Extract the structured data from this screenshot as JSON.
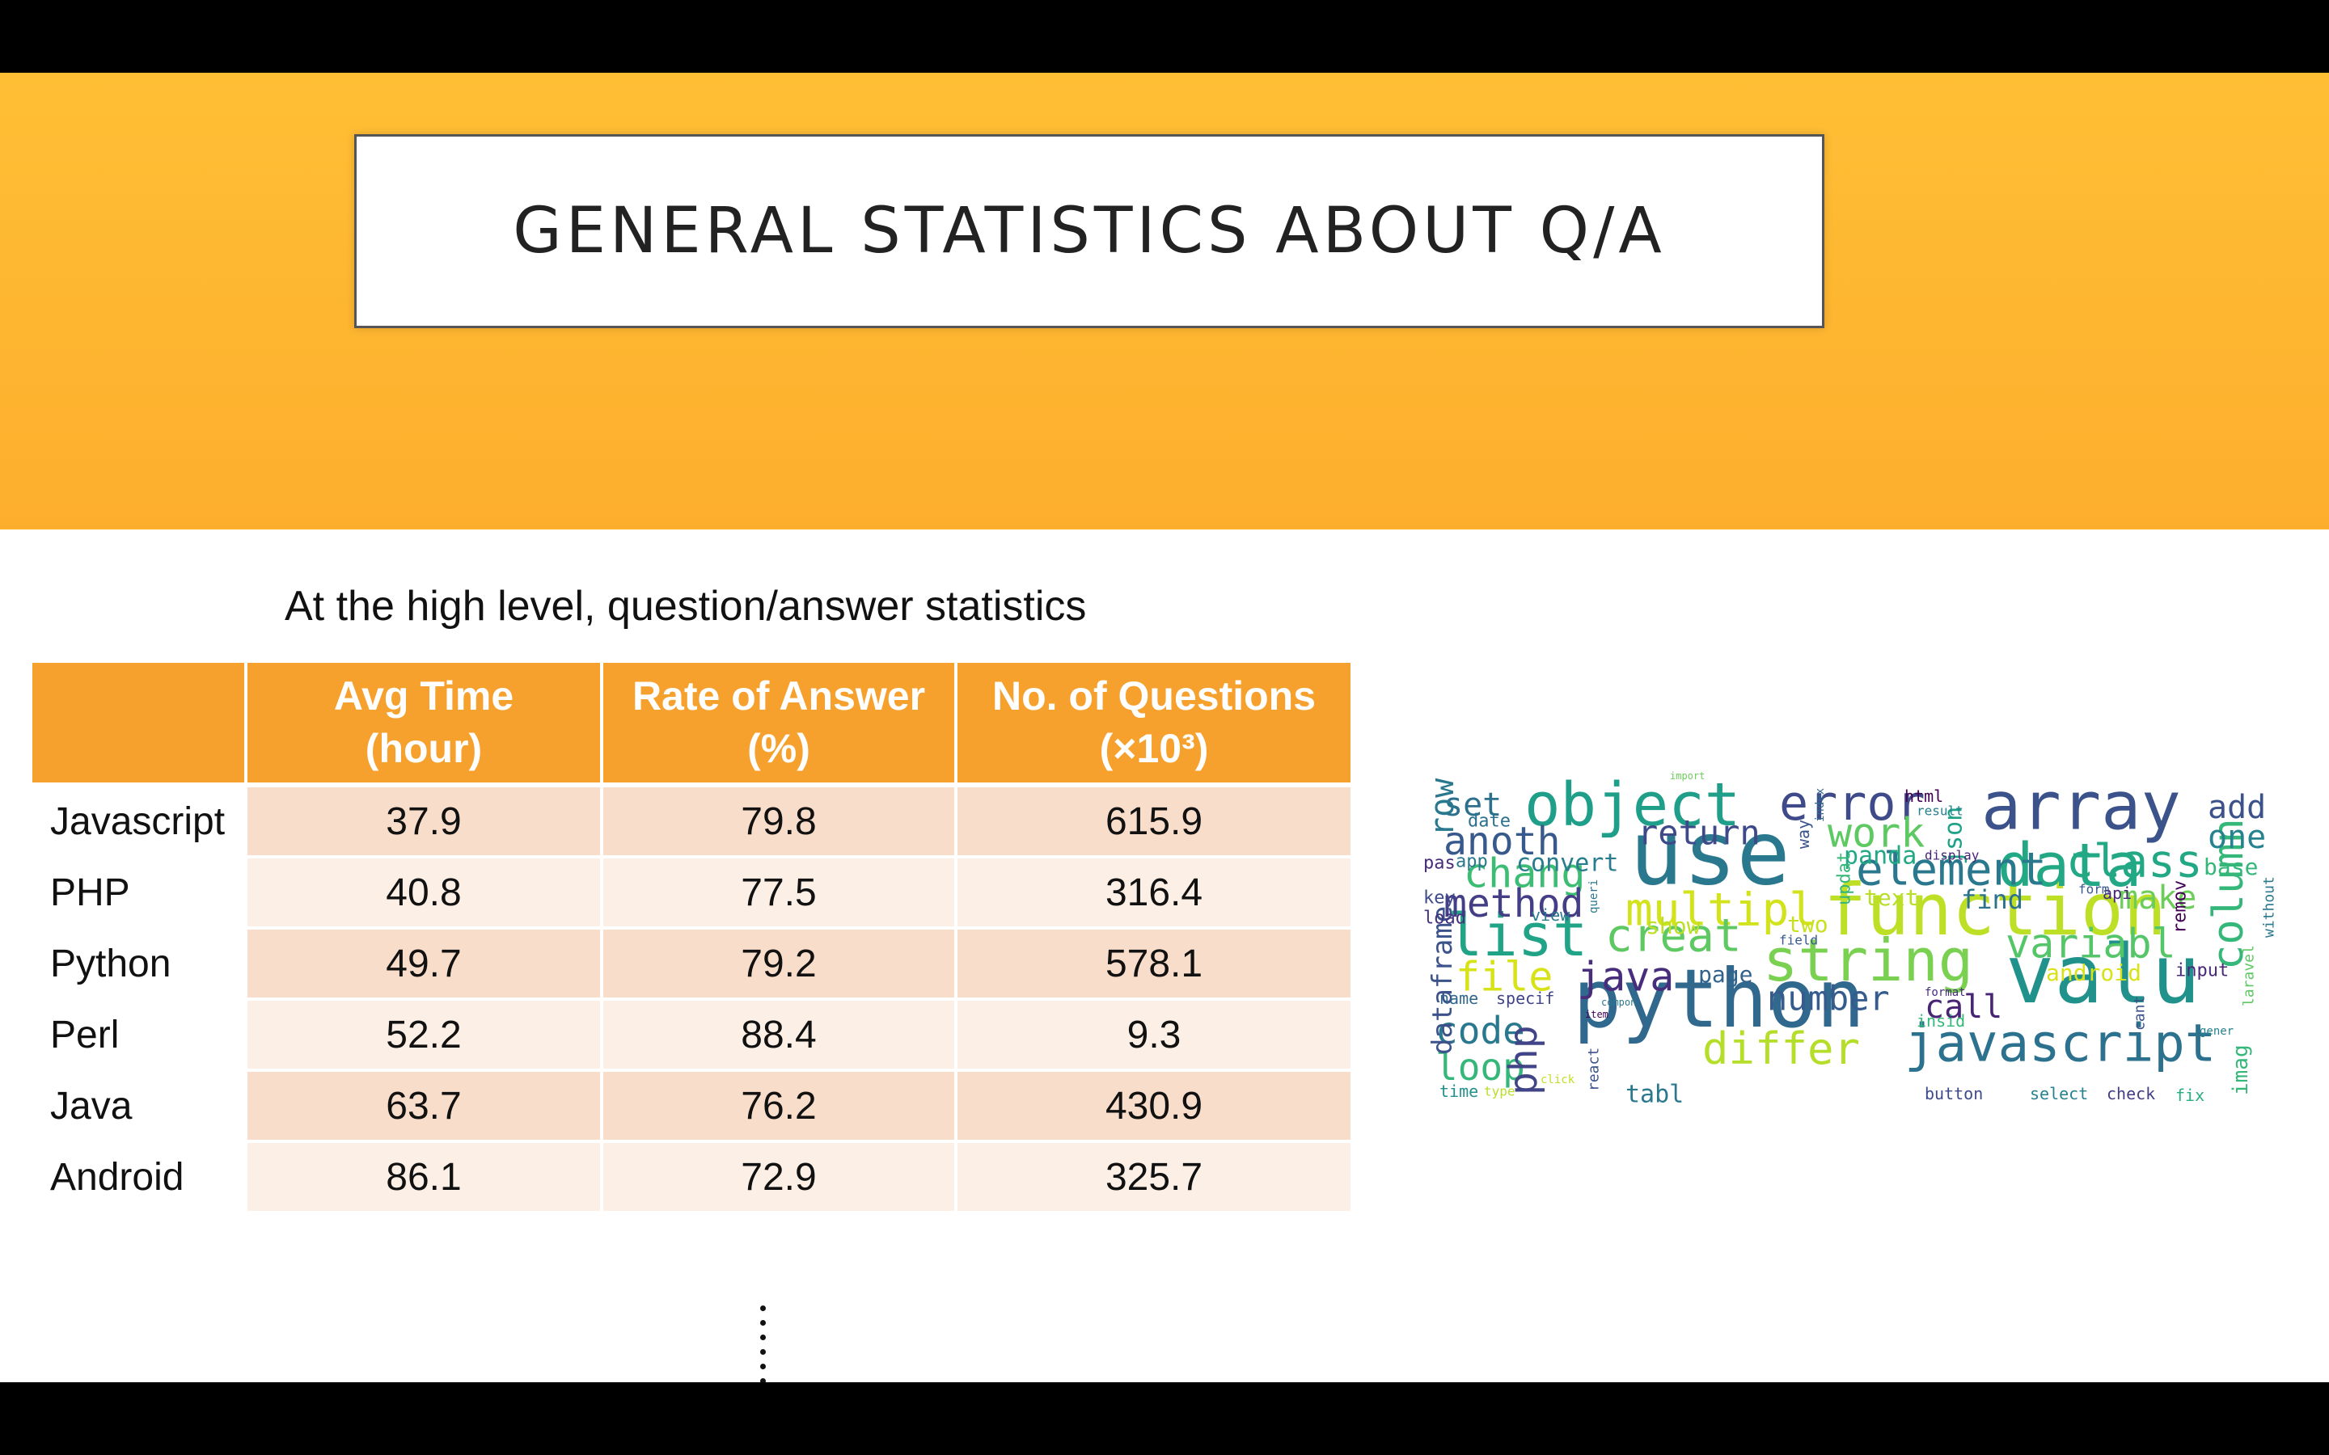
{
  "title": "GENERAL STATISTICS ABOUT Q/A",
  "subtitle": "At the high level, question/answer statistics",
  "table": {
    "headers": [
      {
        "line1": "",
        "line2": ""
      },
      {
        "line1": "Avg Time",
        "line2": "(hour)"
      },
      {
        "line1": "Rate of Answer",
        "line2": "(%)"
      },
      {
        "line1": "No. of Questions",
        "line2": "(×10³)"
      }
    ],
    "rows": [
      {
        "name": "Javascript",
        "avg_time": "37.9",
        "rate": "79.8",
        "questions": "615.9"
      },
      {
        "name": "PHP",
        "avg_time": "40.8",
        "rate": "77.5",
        "questions": "316.4"
      },
      {
        "name": "Python",
        "avg_time": "49.7",
        "rate": "79.2",
        "questions": "578.1"
      },
      {
        "name": "Perl",
        "avg_time": "52.2",
        "rate": "88.4",
        "questions": "9.3"
      },
      {
        "name": "Java",
        "avg_time": "63.7",
        "rate": "76.2",
        "questions": "430.9"
      },
      {
        "name": "Android",
        "avg_time": "86.1",
        "rate": "72.9",
        "questions": "325.7"
      }
    ]
  },
  "colors": {
    "banner": "#fdb02e",
    "header": "#f6a12e",
    "row_dark": "#f9ddcb",
    "row_light": "#fcefe6"
  },
  "word_cloud": {
    "words": [
      {
        "text": "use",
        "color": "#2a788e",
        "size": 110
      },
      {
        "text": "python",
        "color": "#31688e",
        "size": 100
      },
      {
        "text": "valu",
        "color": "#21918c",
        "size": 100
      },
      {
        "text": "function",
        "color": "#bddf26",
        "size": 88
      },
      {
        "text": "array",
        "color": "#3b528b",
        "size": 82
      },
      {
        "text": "object",
        "color": "#1f9e89",
        "size": 74
      },
      {
        "text": "data",
        "color": "#22a884",
        "size": 74
      },
      {
        "text": "string",
        "color": "#7ad151",
        "size": 72
      },
      {
        "text": "list",
        "color": "#20a386",
        "size": 72
      },
      {
        "text": "javascript",
        "color": "#2c728e",
        "size": 64
      },
      {
        "text": "error",
        "color": "#3e4a89",
        "size": 60
      },
      {
        "text": "element",
        "color": "#2a788e",
        "size": 56
      },
      {
        "text": "class",
        "color": "#22a884",
        "size": 56
      },
      {
        "text": "multipl",
        "color": "#d2e21b",
        "size": 56
      },
      {
        "text": "creat",
        "color": "#5ec962",
        "size": 56
      },
      {
        "text": "differ",
        "color": "#b5de2b",
        "size": 54
      },
      {
        "text": "column",
        "color": "#35b779",
        "size": 52
      },
      {
        "text": "variabl",
        "color": "#54c568",
        "size": 50
      },
      {
        "text": "work",
        "color": "#5ec962",
        "size": 50
      },
      {
        "text": "chang",
        "color": "#3dbc74",
        "size": 50
      },
      {
        "text": "method",
        "color": "#433e85",
        "size": 48
      },
      {
        "text": "file",
        "color": "#d8e219",
        "size": 50
      },
      {
        "text": "java",
        "color": "#472d7b",
        "size": 50
      },
      {
        "text": "anoth",
        "color": "#38598c",
        "size": 48
      },
      {
        "text": "code",
        "color": "#2a788e",
        "size": 46
      },
      {
        "text": "loop",
        "color": "#35b779",
        "size": 46
      },
      {
        "text": "number",
        "color": "#365c8d",
        "size": 42
      },
      {
        "text": "php",
        "color": "#414487",
        "size": 48
      },
      {
        "text": "call",
        "color": "#482475",
        "size": 40
      },
      {
        "text": "return",
        "color": "#3e4989",
        "size": 42
      },
      {
        "text": "make",
        "color": "#6ccd5a",
        "size": 40
      },
      {
        "text": "one",
        "color": "#26828e",
        "size": 40
      },
      {
        "text": "add",
        "color": "#3b528b",
        "size": 40
      },
      {
        "text": "set",
        "color": "#2d708e",
        "size": 40
      },
      {
        "text": "row",
        "color": "#2a788e",
        "size": 40
      },
      {
        "text": "dataframe",
        "color": "#3b528b",
        "size": 34
      },
      {
        "text": "convert",
        "color": "#287c8e",
        "size": 30
      },
      {
        "text": "panda",
        "color": "#22a884",
        "size": 30
      },
      {
        "text": "json",
        "color": "#1fa188",
        "size": 30
      },
      {
        "text": "find",
        "color": "#2c728e",
        "size": 32
      },
      {
        "text": "text",
        "color": "#b8de29",
        "size": 28
      },
      {
        "text": "page",
        "color": "#33638d",
        "size": 28
      },
      {
        "text": "show",
        "color": "#bddf26",
        "size": 28
      },
      {
        "text": "two",
        "color": "#c8e020",
        "size": 28
      },
      {
        "text": "android",
        "color": "#d8e219",
        "size": 28
      },
      {
        "text": "base",
        "color": "#35b779",
        "size": 28
      },
      {
        "text": "tabl",
        "color": "#2a788e",
        "size": 30
      },
      {
        "text": "remov",
        "color": "#440154",
        "size": 22
      },
      {
        "text": "imag",
        "color": "#35b779",
        "size": 26
      },
      {
        "text": "input",
        "color": "#482878",
        "size": 22
      },
      {
        "text": "button",
        "color": "#3e4a89",
        "size": 20
      },
      {
        "text": "select",
        "color": "#26828e",
        "size": 20
      },
      {
        "text": "check",
        "color": "#433e85",
        "size": 20
      },
      {
        "text": "fix",
        "color": "#29af7f",
        "size": 20
      },
      {
        "text": "time",
        "color": "#21918c",
        "size": 20
      },
      {
        "text": "name",
        "color": "#31688e",
        "size": 20
      },
      {
        "text": "specif",
        "color": "#414487",
        "size": 20
      },
      {
        "text": "key",
        "color": "#3e4a89",
        "size": 22
      },
      {
        "text": "load",
        "color": "#46327e",
        "size": 22
      },
      {
        "text": "date",
        "color": "#2d708e",
        "size": 22
      },
      {
        "text": "html",
        "color": "#440154",
        "size": 20
      },
      {
        "text": "pas",
        "color": "#472c7a",
        "size": 22
      },
      {
        "text": "app",
        "color": "#2a788e",
        "size": 22
      },
      {
        "text": "view",
        "color": "#2a788e",
        "size": 20
      },
      {
        "text": "api",
        "color": "#482878",
        "size": 20
      },
      {
        "text": "updat",
        "color": "#35b779",
        "size": 22
      },
      {
        "text": "insid",
        "color": "#35b779",
        "size": 20
      },
      {
        "text": "laravel",
        "color": "#5ec962",
        "size": 18
      },
      {
        "text": "without",
        "color": "#2a788e",
        "size": 18
      },
      {
        "text": "react",
        "color": "#3b528b",
        "size": 18
      },
      {
        "text": "way",
        "color": "#3b528b",
        "size": 20
      },
      {
        "text": "display",
        "color": "#482475",
        "size": 16
      },
      {
        "text": "result",
        "color": "#26828e",
        "size": 16
      },
      {
        "text": "field",
        "color": "#38598c",
        "size": 16
      },
      {
        "text": "format",
        "color": "#472d7b",
        "size": 14
      },
      {
        "text": "click",
        "color": "#c2df23",
        "size": 14
      },
      {
        "text": "type",
        "color": "#b8de29",
        "size": 16
      },
      {
        "text": "cant",
        "color": "#3b528b",
        "size": 18
      },
      {
        "text": "gener",
        "color": "#26828e",
        "size": 14
      },
      {
        "text": "form",
        "color": "#38598c",
        "size": 16
      },
      {
        "text": "item",
        "color": "#440154",
        "size": 12
      },
      {
        "text": "import",
        "color": "#6ccd5a",
        "size": 12
      },
      {
        "text": "index",
        "color": "#31688e",
        "size": 14
      },
      {
        "text": "queri",
        "color": "#2a788e",
        "size": 14
      },
      {
        "text": "compon",
        "color": "#2a788e",
        "size": 12
      }
    ]
  }
}
